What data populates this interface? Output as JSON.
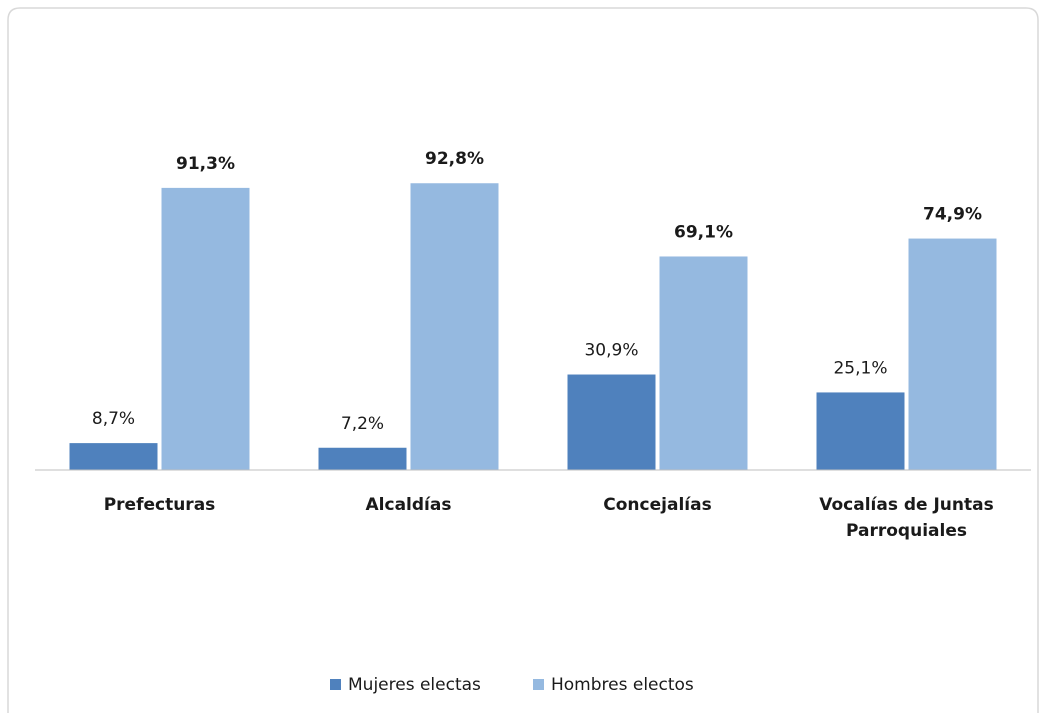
{
  "chart_data": {
    "type": "bar",
    "categories": [
      "Prefecturas",
      "Alcaldías",
      "Concejalías",
      "Vocalías de Juntas Parroquiales"
    ],
    "series": [
      {
        "name": "Mujeres electas",
        "color": "#4f81bd",
        "values": [
          8.7,
          7.2,
          30.9,
          25.1
        ],
        "value_labels": [
          "8,7%",
          "7,2%",
          "30,9%",
          "25,1%"
        ]
      },
      {
        "name": "Hombres electos",
        "color": "#95b9e0",
        "values": [
          91.3,
          92.8,
          69.1,
          74.9
        ],
        "value_labels": [
          "91,3%",
          "92,8%",
          "69,1%",
          "74,9%"
        ]
      }
    ],
    "ylim": [
      0,
      100
    ],
    "legend": "bottom"
  }
}
